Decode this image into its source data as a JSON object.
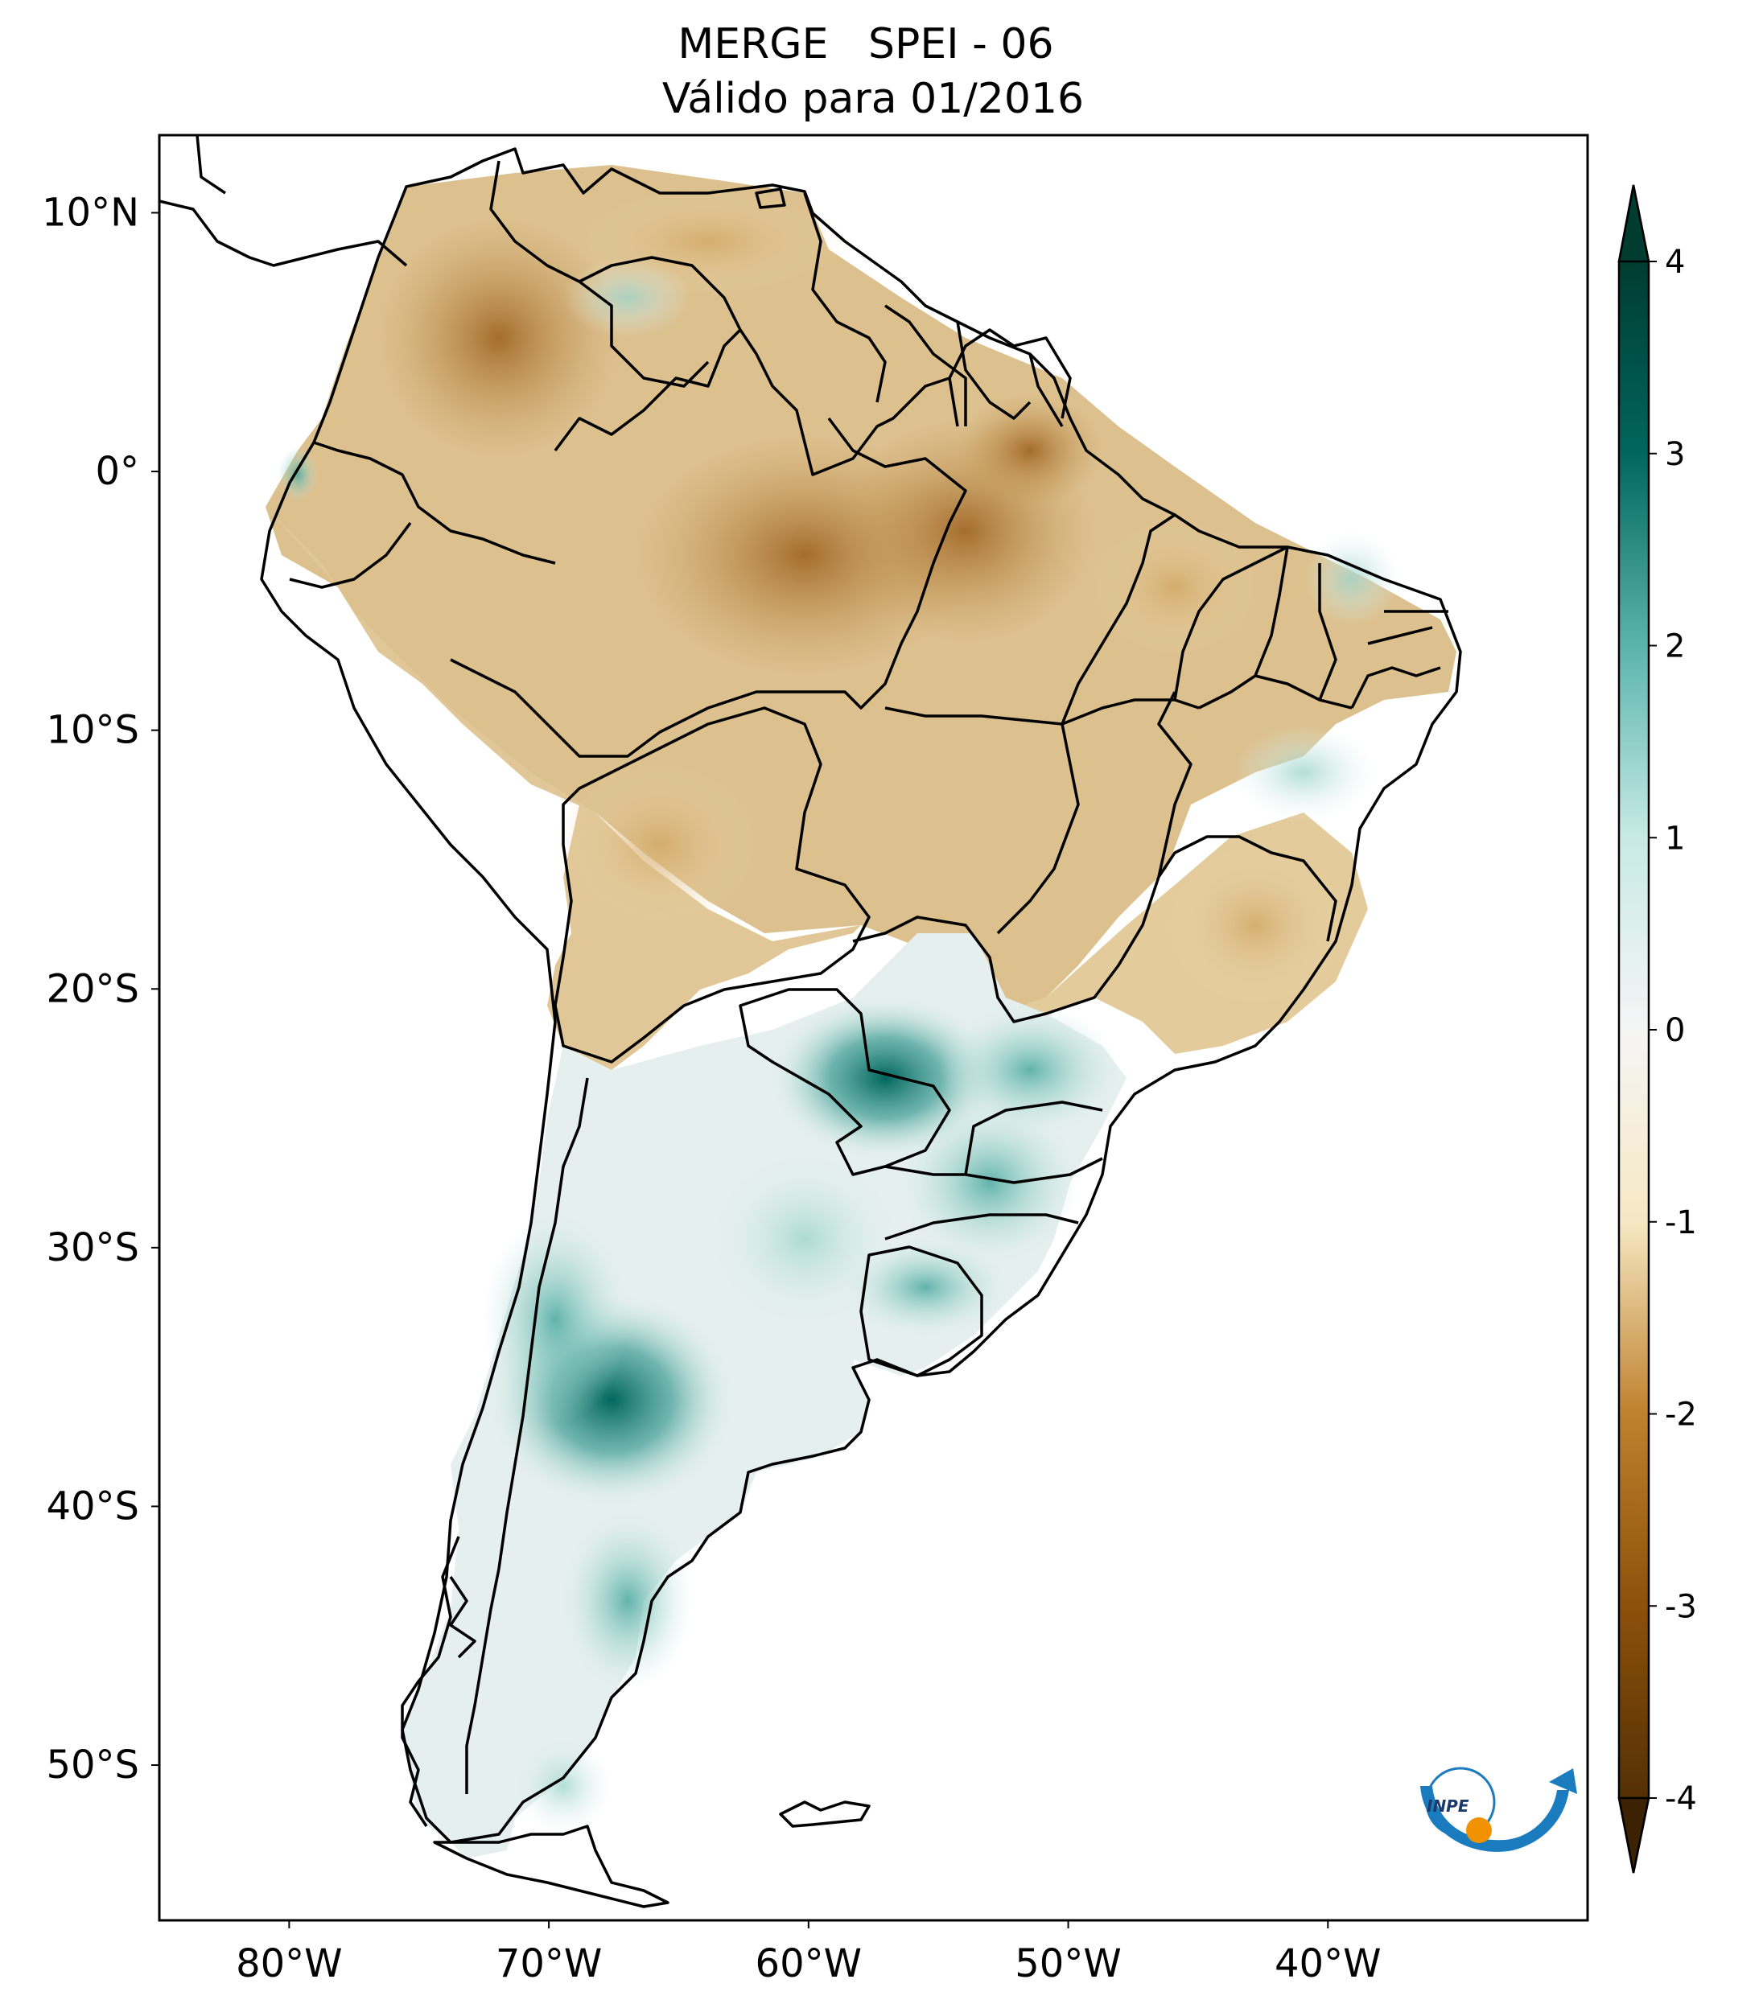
{
  "title": {
    "line1": "MERGE   SPEI - 06",
    "line2": "Válido para 01/2016"
  },
  "map": {
    "lon_range": [
      -85,
      -30
    ],
    "lat_range": [
      -56,
      13
    ],
    "lon_ticks": [
      {
        "value": -80,
        "label": "80°W"
      },
      {
        "value": -70,
        "label": "70°W"
      },
      {
        "value": -60,
        "label": "60°W"
      },
      {
        "value": -50,
        "label": "50°W"
      },
      {
        "value": -40,
        "label": "40°W"
      }
    ],
    "lat_ticks": [
      {
        "value": 10,
        "label": "10°N"
      },
      {
        "value": 0,
        "label": "0°"
      },
      {
        "value": -10,
        "label": "10°S"
      },
      {
        "value": -20,
        "label": "20°S"
      },
      {
        "value": -30,
        "label": "30°S"
      },
      {
        "value": -40,
        "label": "40°S"
      },
      {
        "value": -50,
        "label": "50°S"
      }
    ]
  },
  "colorbar": {
    "min": -4,
    "max": 4,
    "ticks": [
      {
        "value": 4,
        "label": "4"
      },
      {
        "value": 3,
        "label": "3"
      },
      {
        "value": 2,
        "label": "2"
      },
      {
        "value": 1,
        "label": "1"
      },
      {
        "value": 0,
        "label": "0"
      },
      {
        "value": -1,
        "label": "-1"
      },
      {
        "value": -2,
        "label": "-2"
      },
      {
        "value": -3,
        "label": "-3"
      },
      {
        "value": -4,
        "label": "-4"
      }
    ],
    "colors": {
      "neg4": "#543005",
      "neg3": "#8c510a",
      "neg2": "#bf812d",
      "neg1": "#f6e8c3",
      "zero": "#f5f5f5",
      "pos1": "#c7eae5",
      "pos2": "#5ab4ac",
      "pos3": "#01665e",
      "pos4": "#003c30"
    }
  },
  "logo": {
    "text": "INPE",
    "colors": {
      "blue": "#1a7bbf",
      "orange": "#f39200"
    }
  }
}
